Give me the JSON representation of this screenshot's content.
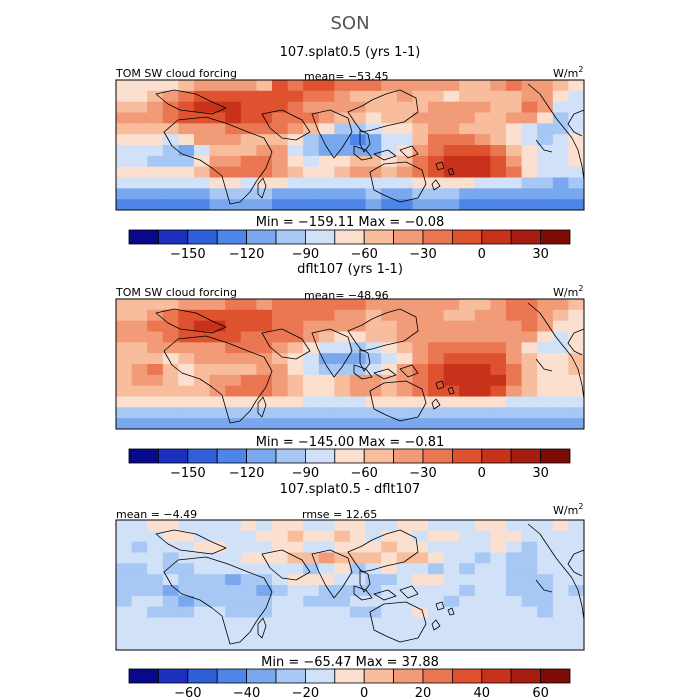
{
  "figure": {
    "season": "SON",
    "colors": [
      "#08088a",
      "#1c2fbe",
      "#2f5fd9",
      "#4d86e8",
      "#7aa8ee",
      "#a7c7f4",
      "#d0e1f8",
      "#fbe0cf",
      "#f7bd9d",
      "#f19b79",
      "#ea7752",
      "#df5230",
      "#c8321b",
      "#a51c11",
      "#7e0c06"
    ]
  },
  "chart_data": [
    {
      "type": "heatmap",
      "title": "107.splat0.5 (yrs 1-1)",
      "label_left": "TOM SW cloud forcing",
      "label_mid": "mean= −53.45",
      "units": "W/m",
      "units_sup": "2",
      "range_text": "Min = −159.11 Max = −0.08",
      "stats": {
        "mean": -53.45,
        "min": -159.11,
        "max": -0.08
      },
      "colorbar_ticks": [
        "−150",
        "−120",
        "−90",
        "−60",
        "−30",
        "0",
        "30"
      ],
      "colorbar_tick_values": [
        -150,
        -120,
        -90,
        -60,
        -30,
        0,
        30
      ],
      "colorbar_range": [
        -180,
        45
      ],
      "field": [
        [
          7,
          7,
          7,
          7,
          8,
          9,
          9,
          9,
          9,
          8,
          11,
          10,
          11,
          11,
          10,
          10,
          10,
          9,
          9,
          9,
          9,
          9,
          8,
          8,
          9,
          10,
          9,
          9,
          8,
          7
        ],
        [
          7,
          7,
          8,
          9,
          10,
          11,
          11,
          11,
          11,
          11,
          11,
          11,
          10,
          10,
          9,
          8,
          8,
          8,
          9,
          8,
          8,
          7,
          8,
          8,
          8,
          8,
          9,
          9,
          7,
          6
        ],
        [
          8,
          8,
          9,
          10,
          11,
          12,
          12,
          12,
          11,
          11,
          11,
          10,
          9,
          9,
          9,
          9,
          8,
          8,
          8,
          8,
          9,
          9,
          9,
          9,
          8,
          8,
          10,
          9,
          6,
          6
        ],
        [
          9,
          9,
          9,
          10,
          11,
          11,
          11,
          12,
          11,
          11,
          10,
          10,
          10,
          9,
          8,
          8,
          7,
          8,
          8,
          9,
          9,
          9,
          9,
          8,
          8,
          9,
          9,
          7,
          5,
          6
        ],
        [
          8,
          8,
          8,
          8,
          9,
          9,
          9,
          10,
          10,
          10,
          10,
          9,
          8,
          7,
          5,
          5,
          6,
          7,
          7,
          8,
          9,
          9,
          8,
          8,
          8,
          7,
          6,
          5,
          5,
          6
        ],
        [
          7,
          7,
          7,
          6,
          7,
          9,
          9,
          9,
          8,
          8,
          8,
          7,
          5,
          4,
          4,
          3,
          4,
          6,
          6,
          8,
          10,
          10,
          10,
          9,
          8,
          7,
          6,
          5,
          6,
          7
        ],
        [
          6,
          6,
          6,
          5,
          4,
          6,
          8,
          8,
          8,
          9,
          9,
          6,
          5,
          4,
          4,
          4,
          4,
          6,
          7,
          9,
          10,
          11,
          11,
          11,
          10,
          8,
          7,
          6,
          6,
          7
        ],
        [
          6,
          6,
          5,
          5,
          5,
          7,
          9,
          9,
          10,
          10,
          9,
          7,
          6,
          7,
          7,
          8,
          8,
          7,
          8,
          10,
          11,
          12,
          12,
          12,
          11,
          9,
          7,
          6,
          6,
          7
        ],
        [
          7,
          7,
          7,
          7,
          7,
          8,
          10,
          10,
          10,
          10,
          9,
          8,
          7,
          7,
          8,
          9,
          9,
          8,
          9,
          10,
          11,
          12,
          12,
          12,
          11,
          10,
          7,
          6,
          6,
          6
        ],
        [
          6,
          6,
          6,
          6,
          6,
          6,
          7,
          7,
          6,
          7,
          7,
          6,
          6,
          6,
          6,
          6,
          6,
          6,
          6,
          7,
          7,
          7,
          7,
          6,
          6,
          6,
          5,
          5,
          4,
          5
        ],
        [
          4,
          4,
          4,
          4,
          4,
          4,
          5,
          5,
          5,
          5,
          4,
          4,
          4,
          4,
          4,
          4,
          5,
          4,
          4,
          5,
          5,
          5,
          4,
          4,
          4,
          4,
          4,
          4,
          4,
          4
        ],
        [
          3,
          3,
          3,
          3,
          3,
          3,
          4,
          4,
          4,
          4,
          3,
          3,
          3,
          3,
          3,
          3,
          4,
          3,
          3,
          4,
          4,
          4,
          3,
          3,
          3,
          3,
          3,
          3,
          3,
          3
        ]
      ]
    },
    {
      "type": "heatmap",
      "title": "dflt107 (yrs 1-1)",
      "label_left": "TOM SW cloud forcing",
      "label_mid": "mean= −48.96",
      "units": "W/m",
      "units_sup": "2",
      "range_text": "Min = −145.00 Max = −0.81",
      "stats": {
        "mean": -48.96,
        "min": -145.0,
        "max": -0.81
      },
      "colorbar_ticks": [
        "−150",
        "−120",
        "−90",
        "−60",
        "−30",
        "0",
        "30"
      ],
      "colorbar_tick_values": [
        -150,
        -120,
        -90,
        -60,
        -30,
        0,
        30
      ],
      "colorbar_range": [
        -180,
        45
      ],
      "field": [
        [
          8,
          8,
          8,
          8,
          9,
          9,
          9,
          10,
          10,
          9,
          10,
          10,
          10,
          10,
          10,
          10,
          9,
          9,
          9,
          9,
          9,
          9,
          8,
          8,
          9,
          10,
          10,
          9,
          9,
          8
        ],
        [
          8,
          8,
          9,
          10,
          11,
          11,
          11,
          11,
          11,
          11,
          10,
          10,
          10,
          10,
          9,
          9,
          8,
          9,
          9,
          9,
          9,
          8,
          8,
          9,
          9,
          10,
          10,
          9,
          8,
          7
        ],
        [
          9,
          9,
          10,
          10,
          11,
          12,
          12,
          11,
          11,
          11,
          10,
          10,
          9,
          9,
          9,
          9,
          8,
          8,
          9,
          9,
          9,
          9,
          9,
          9,
          9,
          9,
          10,
          9,
          7,
          7
        ],
        [
          9,
          9,
          9,
          10,
          11,
          11,
          11,
          11,
          10,
          10,
          10,
          10,
          9,
          8,
          7,
          7,
          8,
          8,
          9,
          9,
          9,
          9,
          9,
          9,
          9,
          9,
          9,
          7,
          6,
          7
        ],
        [
          8,
          8,
          9,
          9,
          9,
          9,
          9,
          10,
          10,
          10,
          9,
          8,
          7,
          6,
          6,
          5,
          6,
          7,
          8,
          9,
          10,
          10,
          10,
          10,
          10,
          9,
          7,
          6,
          6,
          7
        ],
        [
          8,
          8,
          8,
          7,
          8,
          9,
          9,
          9,
          9,
          9,
          8,
          7,
          6,
          4,
          4,
          4,
          5,
          6,
          7,
          9,
          10,
          11,
          11,
          11,
          11,
          9,
          8,
          7,
          7,
          8
        ],
        [
          8,
          9,
          10,
          8,
          7,
          8,
          8,
          8,
          8,
          9,
          9,
          7,
          6,
          5,
          5,
          5,
          6,
          7,
          9,
          10,
          11,
          12,
          12,
          12,
          11,
          10,
          8,
          7,
          7,
          8
        ],
        [
          8,
          9,
          9,
          8,
          7,
          8,
          9,
          9,
          10,
          10,
          9,
          8,
          7,
          7,
          8,
          9,
          9,
          8,
          9,
          10,
          11,
          12,
          12,
          12,
          12,
          10,
          8,
          7,
          7,
          7
        ],
        [
          8,
          8,
          8,
          8,
          8,
          8,
          9,
          10,
          10,
          10,
          9,
          8,
          7,
          7,
          8,
          9,
          9,
          8,
          9,
          10,
          11,
          11,
          12,
          12,
          11,
          9,
          8,
          7,
          7,
          7
        ],
        [
          7,
          7,
          7,
          7,
          7,
          7,
          7,
          7,
          7,
          7,
          7,
          7,
          6,
          6,
          6,
          6,
          7,
          7,
          7,
          7,
          7,
          7,
          7,
          7,
          7,
          6,
          6,
          6,
          6,
          6
        ],
        [
          5,
          5,
          5,
          5,
          5,
          5,
          5,
          5,
          5,
          5,
          5,
          5,
          5,
          5,
          5,
          5,
          5,
          5,
          5,
          5,
          5,
          5,
          5,
          5,
          5,
          5,
          5,
          5,
          5,
          5
        ],
        [
          4,
          4,
          4,
          4,
          4,
          4,
          4,
          4,
          4,
          4,
          4,
          4,
          4,
          4,
          4,
          4,
          4,
          4,
          4,
          4,
          4,
          4,
          4,
          4,
          4,
          4,
          4,
          4,
          4,
          4
        ]
      ]
    },
    {
      "type": "heatmap",
      "title": "107.splat0.5 - dflt107",
      "label_left": "mean = −4.49",
      "label_mid": "rmse = 12.65",
      "units": "W/m",
      "units_sup": "2",
      "range_text": "Min = −65.47 Max = 37.88",
      "stats": {
        "mean": -4.49,
        "rmse": 12.65,
        "min": -65.47,
        "max": 37.88
      },
      "colorbar_ticks": [
        "−60",
        "−40",
        "−20",
        "0",
        "20",
        "40",
        "60"
      ],
      "colorbar_tick_values": [
        -60,
        -40,
        -20,
        0,
        20,
        40,
        60
      ],
      "colorbar_range": [
        -80,
        70
      ],
      "field": [
        [
          6,
          6,
          7,
          7,
          6,
          6,
          6,
          6,
          7,
          6,
          7,
          7,
          6,
          6,
          7,
          7,
          6,
          6,
          7,
          7,
          6,
          6,
          6,
          7,
          7,
          6,
          6,
          6,
          7,
          6
        ],
        [
          6,
          6,
          6,
          7,
          7,
          6,
          6,
          6,
          6,
          7,
          7,
          8,
          7,
          7,
          8,
          7,
          6,
          7,
          7,
          6,
          7,
          7,
          6,
          6,
          7,
          7,
          6,
          6,
          6,
          6
        ],
        [
          6,
          5,
          6,
          6,
          6,
          7,
          7,
          6,
          6,
          6,
          7,
          7,
          6,
          6,
          7,
          7,
          7,
          8,
          7,
          7,
          6,
          6,
          6,
          6,
          7,
          6,
          5,
          6,
          6,
          6
        ],
        [
          6,
          6,
          6,
          5,
          6,
          6,
          6,
          6,
          7,
          7,
          7,
          8,
          8,
          9,
          8,
          8,
          8,
          7,
          8,
          8,
          7,
          6,
          6,
          5,
          6,
          5,
          5,
          6,
          6,
          6
        ],
        [
          5,
          5,
          6,
          5,
          5,
          6,
          6,
          6,
          6,
          6,
          6,
          6,
          5,
          6,
          7,
          5,
          6,
          7,
          6,
          6,
          5,
          6,
          5,
          6,
          6,
          5,
          5,
          6,
          6,
          6
        ],
        [
          5,
          5,
          5,
          6,
          5,
          5,
          5,
          4,
          5,
          5,
          6,
          7,
          7,
          7,
          6,
          6,
          5,
          5,
          6,
          7,
          7,
          6,
          6,
          6,
          6,
          5,
          5,
          5,
          6,
          6
        ],
        [
          5,
          5,
          5,
          4,
          5,
          5,
          5,
          5,
          5,
          4,
          5,
          6,
          6,
          5,
          5,
          5,
          5,
          6,
          6,
          6,
          6,
          6,
          5,
          6,
          6,
          5,
          5,
          5,
          6,
          5
        ],
        [
          5,
          6,
          6,
          5,
          4,
          5,
          5,
          5,
          5,
          5,
          6,
          6,
          5,
          5,
          5,
          6,
          6,
          6,
          6,
          6,
          6,
          5,
          6,
          6,
          6,
          6,
          5,
          5,
          6,
          6
        ],
        [
          6,
          6,
          5,
          5,
          5,
          6,
          6,
          5,
          5,
          5,
          6,
          6,
          6,
          6,
          6,
          5,
          5,
          6,
          6,
          7,
          6,
          6,
          6,
          6,
          6,
          6,
          6,
          5,
          6,
          6
        ],
        [
          6,
          6,
          6,
          6,
          6,
          6,
          6,
          6,
          6,
          6,
          6,
          6,
          6,
          6,
          6,
          6,
          6,
          6,
          6,
          6,
          6,
          6,
          6,
          6,
          6,
          6,
          6,
          6,
          6,
          6
        ],
        [
          6,
          6,
          6,
          6,
          6,
          6,
          6,
          6,
          6,
          6,
          6,
          6,
          6,
          6,
          6,
          6,
          6,
          6,
          6,
          6,
          6,
          6,
          6,
          6,
          6,
          6,
          6,
          6,
          6,
          6
        ],
        [
          6,
          6,
          6,
          6,
          6,
          6,
          6,
          6,
          6,
          6,
          6,
          6,
          6,
          6,
          6,
          6,
          6,
          6,
          6,
          6,
          6,
          6,
          6,
          6,
          6,
          6,
          6,
          6,
          6,
          6
        ]
      ]
    }
  ]
}
